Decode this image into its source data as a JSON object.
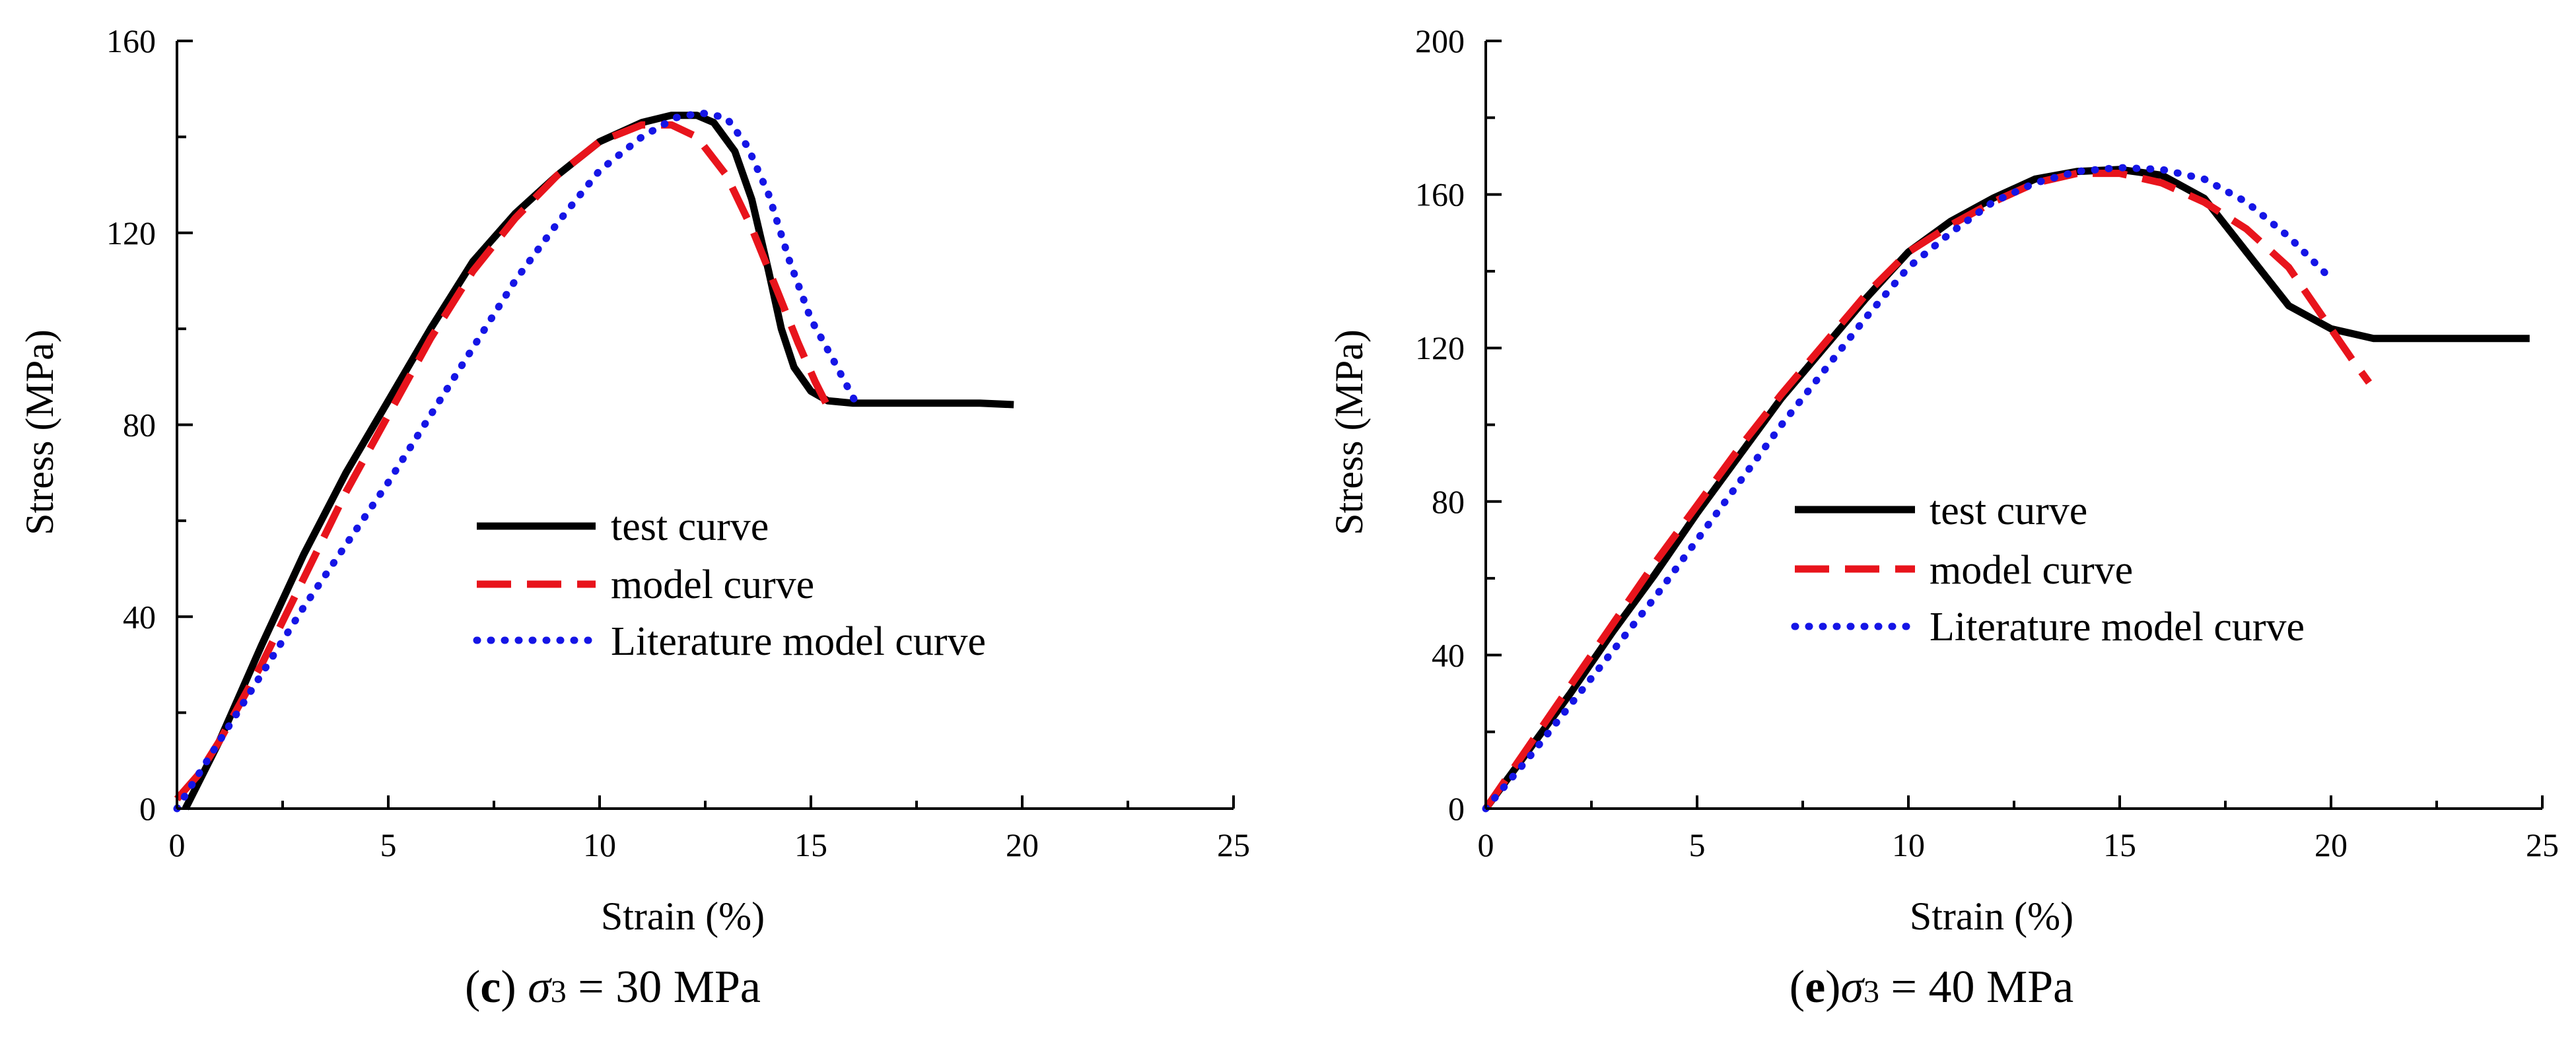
{
  "chart_data": [
    {
      "type": "line",
      "caption": {
        "letter": "c",
        "sigma": "σ",
        "sub": "3",
        "value": "= 30 MPa"
      },
      "xlabel": "Strain (%)",
      "ylabel": "Stress (MPa)",
      "xlim": [
        0,
        25
      ],
      "ylim": [
        0,
        160
      ],
      "xticks": [
        0,
        5,
        10,
        15,
        20,
        25
      ],
      "yticks": [
        0,
        40,
        80,
        120,
        160
      ],
      "legend_position": "center-right",
      "series": [
        {
          "name": "test curve",
          "style": "solid",
          "color": "#000000",
          "x": [
            0.2,
            1,
            2,
            3,
            4,
            5,
            6,
            7,
            8,
            9,
            10,
            11,
            11.7,
            12.3,
            12.7,
            13.2,
            13.6,
            14,
            14.3,
            14.6,
            15,
            15.4,
            16,
            17,
            18,
            19,
            19.8
          ],
          "y": [
            0,
            14,
            34,
            53,
            70,
            85,
            100,
            114,
            124,
            132,
            139,
            143,
            144.5,
            144.5,
            143,
            137,
            127,
            112,
            100,
            92,
            87,
            85,
            84.5,
            84.5,
            84.5,
            84.5,
            84.2
          ]
        },
        {
          "name": "model curve",
          "style": "dashed",
          "color": "#e8141c",
          "x": [
            0,
            0.5,
            1,
            2,
            3,
            4,
            5,
            6,
            7,
            8,
            9,
            10,
            11,
            11.7,
            12.3,
            13,
            13.6,
            14.2,
            14.7,
            15.1,
            15.5
          ],
          "y": [
            2,
            7,
            14,
            30,
            48,
            66,
            82,
            98,
            112,
            123,
            132,
            139,
            142.5,
            142.5,
            140,
            132,
            121,
            108,
            97,
            89,
            82
          ]
        },
        {
          "name": "Literature model curve",
          "style": "dotted",
          "color": "#1515e6",
          "x": [
            0,
            1,
            2,
            3,
            4,
            5,
            6,
            7,
            8,
            9,
            10,
            11,
            11.8,
            12.4,
            13,
            13.5,
            14,
            14.5,
            15,
            15.5,
            16.1
          ],
          "y": [
            0,
            14,
            28,
            42,
            55,
            68,
            82,
            96,
            110,
            122,
            133,
            140,
            144,
            145,
            144,
            138,
            128,
            114,
            102,
            94,
            84
          ]
        }
      ]
    },
    {
      "type": "line",
      "caption": {
        "letter": "e",
        "sigma": "σ",
        "sub": "3",
        "value": "= 40 MPa"
      },
      "xlabel": "Strain (%)",
      "ylabel": "Stress (MPa)",
      "xlim": [
        0,
        25
      ],
      "ylim": [
        0,
        200
      ],
      "xticks": [
        0,
        5,
        10,
        15,
        20,
        25
      ],
      "yticks": [
        0,
        40,
        80,
        120,
        160,
        200
      ],
      "legend_position": "center-right",
      "series": [
        {
          "name": "test curve",
          "style": "solid",
          "color": "#000000",
          "x": [
            0,
            1,
            2,
            3,
            4,
            5,
            6,
            7,
            8,
            9,
            10,
            11,
            12,
            13,
            14,
            15,
            16,
            17,
            18,
            19,
            20,
            21,
            22,
            23,
            24,
            24.7
          ],
          "y": [
            0,
            15,
            30,
            46,
            61,
            77,
            92,
            107,
            120,
            133,
            145,
            153,
            159,
            164,
            166,
            166.5,
            165,
            159,
            145,
            131,
            125,
            122.5,
            122.5,
            122.5,
            122.5,
            122.5
          ]
        },
        {
          "name": "model curve",
          "style": "dashed",
          "color": "#e8141c",
          "x": [
            0,
            1,
            2,
            3,
            4,
            5,
            6,
            7,
            8,
            9,
            10,
            11,
            12,
            13,
            14,
            15,
            16,
            17,
            18,
            19,
            20,
            20.5,
            20.9
          ],
          "y": [
            0,
            16,
            32,
            48,
            64,
            79,
            94,
            108,
            121,
            134,
            145,
            152,
            158,
            163,
            165.5,
            165.5,
            163,
            158,
            151,
            141,
            125,
            117,
            111
          ]
        },
        {
          "name": "Literature model curve",
          "style": "dotted",
          "color": "#1515e6",
          "x": [
            0,
            1,
            2,
            3,
            4,
            5,
            6,
            7,
            8,
            9,
            10,
            11,
            12,
            13,
            14,
            15,
            16,
            17,
            18,
            19,
            20
          ],
          "y": [
            0,
            13,
            27,
            41,
            55,
            70,
            85,
            100,
            114,
            128,
            141,
            150,
            158,
            163,
            166,
            167,
            166.5,
            164,
            158,
            149,
            138
          ]
        }
      ]
    }
  ]
}
